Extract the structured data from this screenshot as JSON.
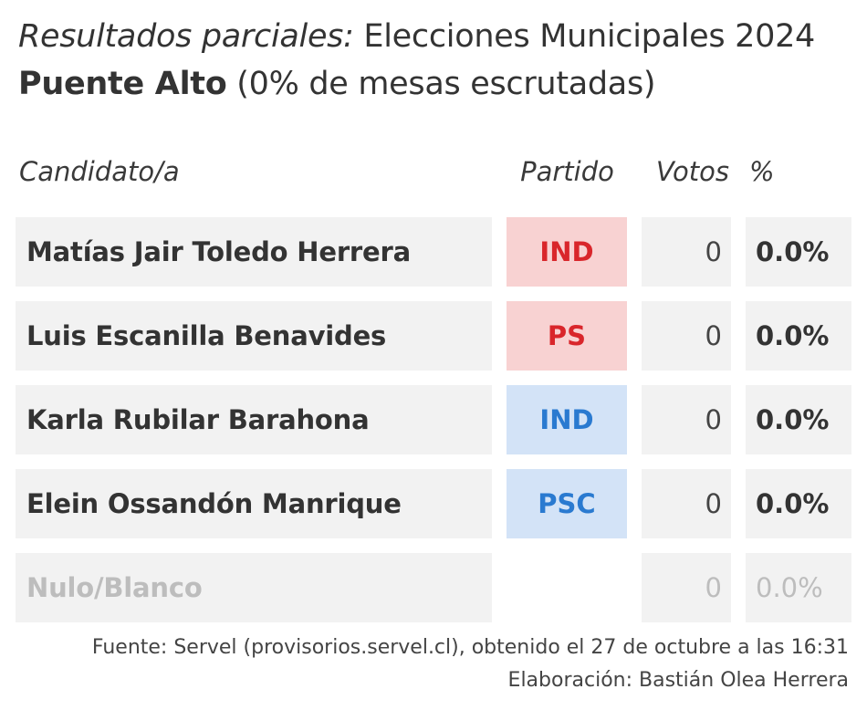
{
  "title": {
    "italic": "Resultados parciales:",
    "rest": " Elecciones Municipales 2024",
    "commune": "Puente Alto",
    "progress": " (0% de mesas escrutadas)"
  },
  "headers": {
    "candidate": "Candidato/a",
    "party": "Partido",
    "votes": "Votos",
    "pct": "%"
  },
  "rows": [
    {
      "name": "Matías Jair Toledo Herrera",
      "party": "IND",
      "party_bg": "#f8d2d2",
      "party_color": "#d9262b",
      "votes": "0",
      "pct": "0.0%"
    },
    {
      "name": "Luis Escanilla Benavides",
      "party": "PS",
      "party_bg": "#f8d2d2",
      "party_color": "#d9262b",
      "votes": "0",
      "pct": "0.0%"
    },
    {
      "name": "Karla Rubilar Barahona",
      "party": "IND",
      "party_bg": "#d3e3f7",
      "party_color": "#2a7ad0",
      "votes": "0",
      "pct": "0.0%"
    },
    {
      "name": "Elein Ossandón Manrique",
      "party": "PSC",
      "party_bg": "#d3e3f7",
      "party_color": "#2a7ad0",
      "votes": "0",
      "pct": "0.0%"
    },
    {
      "name": "Nulo/Blanco",
      "party": "",
      "party_bg": "",
      "party_color": "",
      "votes": "0",
      "pct": "0.0%"
    }
  ],
  "footer": {
    "source": "Fuente: Servel (provisorios.servel.cl), obtenido el 27 de octubre a las 16:31",
    "credit": "Elaboración: Bastián Olea Herrera"
  }
}
